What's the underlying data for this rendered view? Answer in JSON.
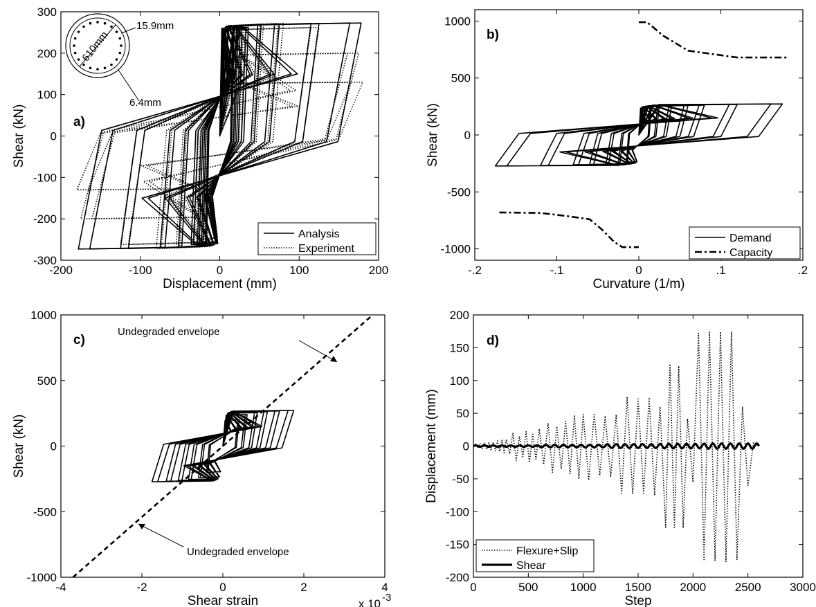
{
  "chart_data": [
    {
      "type": "line",
      "panel_label": "a)",
      "title": "",
      "xlabel": "Displacement (mm)",
      "ylabel": "Shear (kN)",
      "xlim": [
        -200,
        200
      ],
      "ylim": [
        -300,
        300
      ],
      "xticks": [
        -200,
        -100,
        0,
        100,
        200
      ],
      "yticks": [
        -300,
        -200,
        -100,
        0,
        100,
        200,
        300
      ],
      "grid": false,
      "legend_position": "bottom-right",
      "inset": {
        "diameter_label": "610mm",
        "bar_label": "15.9mm",
        "spiral_label": "6.4mm"
      },
      "series": [
        {
          "name": "Analysis",
          "style": "solid",
          "cycles": [
            {
              "amp": 18,
              "yield": 265
            },
            {
              "amp": 23,
              "yield": 265
            },
            {
              "amp": 28,
              "yield": 262
            },
            {
              "amp": 36,
              "yield": 262
            },
            {
              "amp": 52,
              "yield": 268
            },
            {
              "amp": 75,
              "yield": 270
            },
            {
              "amp": 125,
              "yield": 272
            },
            {
              "amp": 178,
              "yield": 273
            }
          ]
        },
        {
          "name": "Experiment",
          "style": "dotted",
          "cycles": [
            {
              "amp": 20,
              "yield": 250
            },
            {
              "amp": 32,
              "yield": 260
            },
            {
              "amp": 55,
              "yield": 270
            },
            {
              "amp": 80,
              "yield": 272
            },
            {
              "amp": 125,
              "yield": 262
            },
            {
              "amp": 175,
              "yield": 200
            },
            {
              "amp": 180,
              "yield": 130
            }
          ]
        }
      ]
    },
    {
      "type": "line",
      "panel_label": "b)",
      "title": "",
      "xlabel": "Curvature (1/m)",
      "ylabel": "Shear (kN)",
      "xlim": [
        -0.2,
        0.2
      ],
      "ylim": [
        -1100,
        1100
      ],
      "xticks": [
        -0.2,
        -0.1,
        0,
        0.1,
        0.2
      ],
      "yticks": [
        -1000,
        -500,
        0,
        500,
        1000
      ],
      "grid": false,
      "legend_position": "bottom-right",
      "series": [
        {
          "name": "Demand",
          "style": "solid",
          "cycles": [
            {
              "amp": 0.015,
              "yield": 240
            },
            {
              "amp": 0.025,
              "yield": 250
            },
            {
              "amp": 0.04,
              "yield": 255
            },
            {
              "amp": 0.06,
              "yield": 258
            },
            {
              "amp": 0.08,
              "yield": 262
            },
            {
              "amp": 0.12,
              "yield": 268
            },
            {
              "amp": 0.175,
              "yield": 272
            }
          ]
        },
        {
          "name": "Capacity",
          "style": "dashdot",
          "x": [
            0,
            0.01,
            0.03,
            0.06,
            0.08,
            0.12,
            0.18
          ],
          "y": [
            990,
            990,
            870,
            740,
            720,
            680,
            680
          ],
          "x_neg": [
            -0.17,
            -0.12,
            -0.09,
            -0.06,
            -0.045,
            -0.03,
            -0.02,
            0
          ],
          "y_neg": [
            -680,
            -685,
            -710,
            -740,
            -830,
            -940,
            -985,
            -985
          ]
        }
      ]
    },
    {
      "type": "line",
      "panel_label": "c)",
      "title": "",
      "xlabel": "Shear strain",
      "ylabel": "Shear (kN)",
      "x_multiplier_label": "x 10",
      "x_multiplier_exponent": "-3",
      "xlim": [
        -4,
        4
      ],
      "ylim": [
        -1000,
        1000
      ],
      "xticks": [
        -4,
        -2,
        0,
        2,
        4
      ],
      "yticks": [
        -1000,
        -500,
        0,
        500,
        1000
      ],
      "grid": false,
      "annotations": [
        "Undegraded envelope",
        "Undegraded envelope"
      ],
      "series": [
        {
          "name": "",
          "style": "dashed",
          "x": [
            -3.7,
            3.7
          ],
          "y": [
            -1000,
            1000
          ]
        },
        {
          "name": "",
          "style": "solid",
          "cycles": [
            {
              "amp": 0.4,
              "yield": 200
            },
            {
              "amp": 0.6,
              "yield": 240
            },
            {
              "amp": 0.85,
              "yield": 255
            },
            {
              "amp": 1.1,
              "yield": 262
            },
            {
              "amp": 1.4,
              "yield": 268
            },
            {
              "amp": 1.75,
              "yield": 272
            }
          ]
        }
      ]
    },
    {
      "type": "line",
      "panel_label": "d)",
      "title": "",
      "xlabel": "Step",
      "ylabel": "Displacement (mm)",
      "xlim": [
        0,
        3000
      ],
      "ylim": [
        -200,
        200
      ],
      "xticks": [
        0,
        500,
        1000,
        1500,
        2000,
        2500,
        3000
      ],
      "yticks": [
        -200,
        -150,
        -100,
        -50,
        0,
        50,
        100,
        150,
        200
      ],
      "grid": false,
      "legend_position": "bottom-left",
      "series": [
        {
          "name": "Flexure+Slip",
          "style": "dotted",
          "x": [
            0,
            20,
            40,
            60,
            80,
            100,
            120,
            140,
            160,
            180,
            200,
            220,
            240,
            260,
            280,
            300,
            330,
            360,
            390,
            420,
            450,
            480,
            510,
            540,
            570,
            600,
            640,
            680,
            720,
            760,
            800,
            840,
            880,
            920,
            960,
            1000,
            1050,
            1100,
            1150,
            1200,
            1250,
            1300,
            1350,
            1400,
            1450,
            1500,
            1550,
            1600,
            1650,
            1700,
            1750,
            1790,
            1830,
            1870,
            1910,
            1950,
            2000,
            2050,
            2100,
            2150,
            2200,
            2250,
            2300,
            2350,
            2400,
            2450,
            2500,
            2550,
            2600
          ],
          "y": [
            0,
            3,
            -3,
            4,
            -4,
            5,
            -5,
            5,
            -6,
            6,
            -7,
            8,
            -8,
            9,
            -10,
            10,
            -12,
            20,
            -22,
            15,
            -16,
            22,
            -25,
            18,
            -20,
            26,
            -28,
            35,
            -40,
            30,
            -35,
            38,
            -42,
            47,
            -50,
            48,
            -52,
            50,
            -45,
            46,
            -47,
            48,
            -72,
            75,
            -73,
            72,
            -72,
            74,
            -75,
            60,
            -124,
            125,
            -124,
            122,
            -125,
            42,
            -55,
            172,
            -175,
            175,
            -175,
            174,
            -176,
            175,
            -173,
            60,
            -60,
            5,
            0
          ]
        },
        {
          "name": "Shear",
          "style": "solid",
          "amplitudes": [
            {
              "upto": 600,
              "amp": 1.0
            },
            {
              "upto": 1200,
              "amp": 2.0
            },
            {
              "upto": 1700,
              "amp": 3.0
            },
            {
              "upto": 2100,
              "amp": 3.5
            },
            {
              "upto": 2600,
              "amp": 4.0
            }
          ],
          "period": 80
        }
      ]
    }
  ]
}
